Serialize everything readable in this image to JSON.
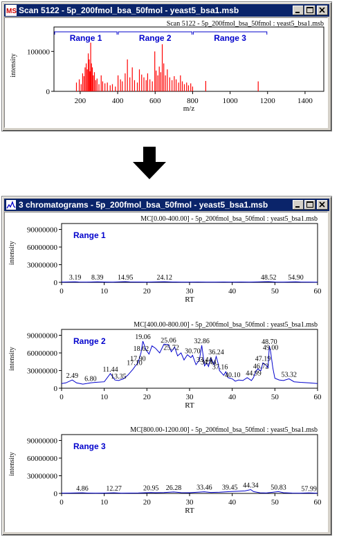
{
  "scan_window": {
    "title": "Scan 5122 - 5p_200fmol_bsa_50fmol - yeast5_bsa1.msb",
    "plot_title": "Scan 5122 - 5p_200fmol_bsa_50fmol : yeast5_bsa1.msb",
    "ylabel": "intensity",
    "xlabel": "m/z",
    "ranges": [
      "Range 1",
      "Range 2",
      "Range 3"
    ]
  },
  "chrom_window": {
    "title": "3 chromatograms - 5p_200fmol_bsa_50fmol - yeast5_bsa1.msb"
  },
  "colors": {
    "titlebar": "#0a246a",
    "spectrum": "#ff0000",
    "trace": "#0000cc",
    "range_label": "#0000cc"
  },
  "icons": [
    "ms-app-icon",
    "minimize-icon",
    "maximize-icon",
    "close-icon",
    "down-arrow-icon"
  ],
  "chart_data": [
    {
      "type": "bar",
      "title": "Scan 5122 - 5p_200fmol_bsa_50fmol : yeast5_bsa1.msb",
      "xlabel": "m/z",
      "ylabel": "intensity",
      "xlim": [
        60,
        1500
      ],
      "ylim": [
        0,
        130000
      ],
      "xticks": [
        200,
        400,
        600,
        800,
        1000,
        1200,
        1400
      ],
      "yticks": [
        0,
        100000
      ],
      "ytick_labels": [
        "0",
        "100000"
      ],
      "grid": false,
      "regions": [
        {
          "label": "Range 1",
          "from": 0,
          "to": 400
        },
        {
          "label": "Range 2",
          "from": 400,
          "to": 800
        },
        {
          "label": "Range 3",
          "from": 800,
          "to": 1200
        }
      ],
      "x": [
        180,
        195,
        205,
        213,
        220,
        226,
        232,
        238,
        243,
        248,
        252,
        256,
        260,
        265,
        270,
        276,
        283,
        290,
        300,
        312,
        320,
        332,
        345,
        360,
        372,
        388,
        402,
        415,
        425,
        440,
        452,
        465,
        478,
        490,
        505,
        516,
        528,
        540,
        552,
        560,
        572,
        585,
        598,
        605,
        614,
        622,
        630,
        638,
        646,
        655,
        665,
        678,
        690,
        702,
        712,
        725,
        735,
        745,
        756,
        768,
        778,
        790,
        800,
        870,
        1150
      ],
      "values": [
        22000,
        30000,
        18000,
        45000,
        38000,
        60000,
        70000,
        55000,
        95000,
        80000,
        50000,
        122000,
        70000,
        60000,
        40000,
        48000,
        28000,
        32000,
        18000,
        40000,
        25000,
        20000,
        22000,
        15000,
        18000,
        12000,
        40000,
        30000,
        25000,
        45000,
        80000,
        35000,
        60000,
        28000,
        22000,
        55000,
        42000,
        35000,
        28000,
        45000,
        30000,
        25000,
        100000,
        52000,
        40000,
        62000,
        48000,
        118000,
        70000,
        40000,
        55000,
        35000,
        28000,
        38000,
        30000,
        22000,
        40000,
        25000,
        18000,
        22000,
        15000,
        20000,
        12000,
        26000,
        25000
      ]
    },
    {
      "type": "line",
      "title": "MC[0.00-400.00] - 5p_200fmol_bsa_50fmol : yeast5_bsa1.msb",
      "region_label": "Range 1",
      "xlabel": "RT",
      "ylabel": "intensity",
      "xlim": [
        0,
        60
      ],
      "ylim": [
        0,
        100000000
      ],
      "xticks": [
        0,
        10,
        20,
        30,
        40,
        50,
        60
      ],
      "yticks": [
        0,
        30000000,
        60000000,
        90000000
      ],
      "ytick_labels": [
        "0",
        "30000000",
        "60000000",
        "90000000"
      ],
      "x": [
        0,
        2,
        3.19,
        4,
        6,
        8.39,
        10,
        12,
        14.95,
        16,
        18,
        20,
        22,
        24.12,
        26,
        28,
        30,
        32,
        34,
        36,
        38,
        40,
        42,
        44,
        46,
        48.52,
        50,
        52,
        54.9,
        56,
        58,
        60
      ],
      "y": [
        500000,
        700000,
        1000000,
        600000,
        500000,
        1000000,
        600000,
        500000,
        1200000,
        700000,
        600000,
        500000,
        700000,
        1100000,
        600000,
        500000,
        500000,
        600000,
        500000,
        500000,
        600000,
        500000,
        600000,
        500000,
        700000,
        1200000,
        600000,
        500000,
        1000000,
        600000,
        500000,
        400000
      ],
      "peak_labels": [
        {
          "x": 3.19,
          "label": "3.19"
        },
        {
          "x": 8.39,
          "label": "8.39"
        },
        {
          "x": 14.95,
          "label": "14.95"
        },
        {
          "x": 24.12,
          "label": "24.12"
        },
        {
          "x": 48.52,
          "label": "48.52"
        },
        {
          "x": 54.9,
          "label": "54.90"
        }
      ]
    },
    {
      "type": "line",
      "title": "MC[400.00-800.00] - 5p_200fmol_bsa_50fmol : yeast5_bsa1.msb",
      "region_label": "Range 2",
      "xlabel": "RT",
      "ylabel": "intensity",
      "xlim": [
        0,
        60
      ],
      "ylim": [
        0,
        100000000
      ],
      "xticks": [
        0,
        10,
        20,
        30,
        40,
        50,
        60
      ],
      "yticks": [
        0,
        30000000,
        60000000,
        90000000
      ],
      "ytick_labels": [
        "0",
        "30000000",
        "60000000",
        "90000000"
      ],
      "x": [
        0,
        1,
        2.49,
        3.5,
        5,
        6.8,
        8,
        10,
        11.44,
        12.5,
        13.35,
        14.5,
        15.5,
        16.1,
        16.7,
        17.3,
        17.9,
        18.62,
        19.06,
        19.8,
        20.5,
        21.2,
        22,
        23,
        24,
        25.06,
        25.72,
        26.5,
        27.2,
        28,
        28.7,
        29.5,
        30.3,
        30.7,
        31.5,
        32.3,
        32.86,
        33.5,
        34,
        34.44,
        35,
        35.7,
        36.24,
        36.7,
        37,
        37.5,
        38,
        38.5,
        39,
        40,
        40.7,
        41.5,
        42.5,
        43.5,
        44.5,
        44.99,
        45.5,
        46,
        46.5,
        46.72,
        47.19,
        47.8,
        48.4,
        48.7,
        49,
        49.5,
        50,
        51,
        52,
        53.32,
        54.5,
        56,
        58,
        60
      ],
      "y": [
        8000000,
        9000000,
        14000000,
        9000000,
        7000000,
        9000000,
        10000000,
        11000000,
        25000000,
        14000000,
        13000000,
        16000000,
        22000000,
        27000000,
        32000000,
        38000000,
        43000000,
        60000000,
        80000000,
        65000000,
        58000000,
        72000000,
        68000000,
        60000000,
        75000000,
        74000000,
        62000000,
        70000000,
        55000000,
        60000000,
        48000000,
        57000000,
        52000000,
        56000000,
        40000000,
        48000000,
        73000000,
        38000000,
        43000000,
        37000000,
        52000000,
        40000000,
        54000000,
        42000000,
        30000000,
        26000000,
        22000000,
        28000000,
        18000000,
        16000000,
        12000000,
        14000000,
        13000000,
        18000000,
        13000000,
        18000000,
        28000000,
        33000000,
        30000000,
        30000000,
        43000000,
        40000000,
        35000000,
        72000000,
        62000000,
        35000000,
        17000000,
        14000000,
        13000000,
        16000000,
        11000000,
        10000000,
        9000000,
        8000000
      ],
      "peak_labels": [
        {
          "x": 2.49,
          "label": "2.49"
        },
        {
          "x": 6.8,
          "label": "6.80"
        },
        {
          "x": 11.44,
          "label": "11.44"
        },
        {
          "x": 13.35,
          "label": "13.35"
        },
        {
          "x": 17.1,
          "label": "17.10"
        },
        {
          "x": 17.9,
          "label": "17.90"
        },
        {
          "x": 18.62,
          "label": "18.62"
        },
        {
          "x": 19.06,
          "label": "19.06"
        },
        {
          "x": 25.06,
          "label": "25.06"
        },
        {
          "x": 25.72,
          "label": "25.72"
        },
        {
          "x": 30.7,
          "label": "30.70"
        },
        {
          "x": 32.86,
          "label": "32.86"
        },
        {
          "x": 33.44,
          "label": "33.44"
        },
        {
          "x": 34.44,
          "label": "34.44"
        },
        {
          "x": 36.24,
          "label": "36.24"
        },
        {
          "x": 37.16,
          "label": "37.16"
        },
        {
          "x": 40.1,
          "label": "40.10"
        },
        {
          "x": 44.99,
          "label": "44.99"
        },
        {
          "x": 46.72,
          "label": "46.72"
        },
        {
          "x": 47.19,
          "label": "47.19"
        },
        {
          "x": 48.7,
          "label": "48.70"
        },
        {
          "x": 49,
          "label": "49.00"
        },
        {
          "x": 53.32,
          "label": "53.32"
        }
      ]
    },
    {
      "type": "line",
      "title": "MC[800.00-1200.00] - 5p_200fmol_bsa_50fmol : yeast5_bsa1.msb",
      "region_label": "Range 3",
      "xlabel": "RT",
      "ylabel": "intensity",
      "xlim": [
        0,
        60
      ],
      "ylim": [
        0,
        100000000
      ],
      "xticks": [
        0,
        10,
        20,
        30,
        40,
        50,
        60
      ],
      "yticks": [
        0,
        30000000,
        60000000,
        90000000
      ],
      "ytick_labels": [
        "0",
        "30000000",
        "60000000",
        "90000000"
      ],
      "x": [
        0,
        2,
        4.86,
        6,
        8,
        10,
        12.27,
        14,
        16,
        18,
        20.95,
        22,
        24,
        26.28,
        28,
        30,
        33.46,
        35,
        37,
        39.45,
        41,
        43,
        44.34,
        45,
        46.5,
        48,
        50.83,
        52,
        54,
        56,
        57.99,
        60
      ],
      "y": [
        500000,
        600000,
        1000000,
        600000,
        500000,
        600000,
        1100000,
        500000,
        600000,
        700000,
        1500000,
        1200000,
        1500000,
        2500000,
        1300000,
        1200000,
        2800000,
        1600000,
        2000000,
        3000000,
        3500000,
        4200000,
        6500000,
        3000000,
        1000000,
        700000,
        3000000,
        1200000,
        600000,
        500000,
        800000,
        400000
      ],
      "peak_labels": [
        {
          "x": 4.86,
          "label": "4.86"
        },
        {
          "x": 12.27,
          "label": "12.27"
        },
        {
          "x": 20.95,
          "label": "20.95"
        },
        {
          "x": 26.28,
          "label": "26.28"
        },
        {
          "x": 33.46,
          "label": "33.46"
        },
        {
          "x": 39.45,
          "label": "39.45"
        },
        {
          "x": 44.34,
          "label": "44.34"
        },
        {
          "x": 50.83,
          "label": "50.83"
        },
        {
          "x": 57.99,
          "label": "57.99"
        }
      ]
    }
  ]
}
